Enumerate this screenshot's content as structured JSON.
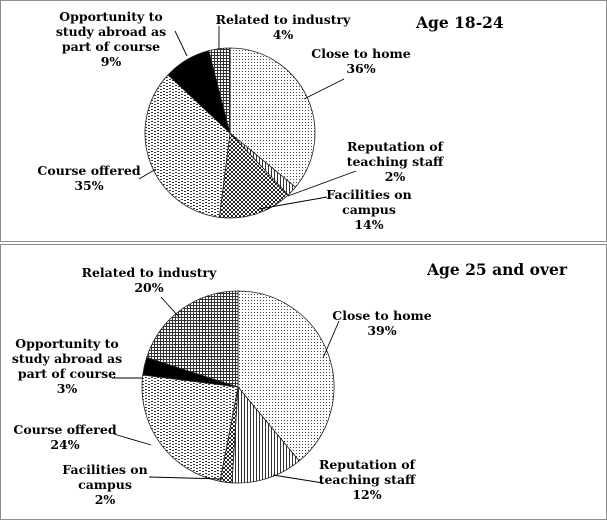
{
  "chart_data": [
    {
      "type": "pie",
      "title": "Age 18-24",
      "slices": [
        {
          "category": "Close to home",
          "value": 36,
          "label": "36%",
          "pattern": "dots"
        },
        {
          "category": "Reputation of teaching staff",
          "value": 2,
          "label": "2%",
          "pattern": "vlines"
        },
        {
          "category": "Facilities on campus",
          "value": 14,
          "label": "14%",
          "pattern": "checker"
        },
        {
          "category": "Course offered",
          "value": 35,
          "label": "35%",
          "pattern": "hdash"
        },
        {
          "category": "Opportunity to study abroad as part of course",
          "value": 9,
          "label": "9%",
          "pattern": "solid"
        },
        {
          "category": "Related to industry",
          "value": 4,
          "label": "4%",
          "pattern": "grid"
        }
      ]
    },
    {
      "type": "pie",
      "title": "Age 25 and over",
      "slices": [
        {
          "category": "Close to home",
          "value": 39,
          "label": "39%",
          "pattern": "dots"
        },
        {
          "category": "Reputation of teaching staff",
          "value": 12,
          "label": "12%",
          "pattern": "vlines"
        },
        {
          "category": "Facilities on campus",
          "value": 2,
          "label": "2%",
          "pattern": "checker"
        },
        {
          "category": "Course offered",
          "value": 24,
          "label": "24%",
          "pattern": "hdash"
        },
        {
          "category": "Opportunity to study abroad as part of course",
          "value": 3,
          "label": "3%",
          "pattern": "solid"
        },
        {
          "category": "Related to industry",
          "value": 20,
          "label": "20%",
          "pattern": "grid"
        }
      ]
    }
  ]
}
